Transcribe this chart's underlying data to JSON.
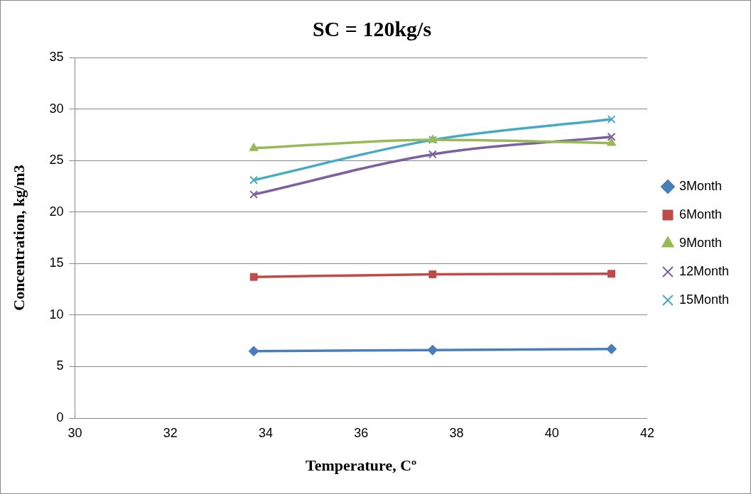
{
  "chart_data": {
    "type": "line",
    "title": "SC = 120kg/s",
    "xlabel": "Temperature, Cº",
    "ylabel": "Concentration, kg/m3",
    "x": [
      33.75,
      37.5,
      41.25
    ],
    "series": [
      {
        "name": "3Month",
        "color": "#4a7ebb",
        "marker": "diamond",
        "values": [
          6.5,
          6.6,
          6.7
        ]
      },
      {
        "name": "6Month",
        "color": "#be4b48",
        "marker": "square",
        "values": [
          13.7,
          13.95,
          14.0
        ]
      },
      {
        "name": "9Month",
        "color": "#98b954",
        "marker": "triangle",
        "values": [
          26.2,
          27.0,
          26.7
        ]
      },
      {
        "name": "12Month",
        "color": "#7d60a0",
        "marker": "cross",
        "values": [
          21.7,
          25.6,
          27.3
        ]
      },
      {
        "name": "15Month",
        "color": "#46aac5",
        "marker": "cross",
        "values": [
          23.1,
          27.0,
          29.0
        ]
      }
    ],
    "xlim": [
      30,
      42
    ],
    "xticks": [
      30,
      32,
      34,
      36,
      38,
      40,
      42
    ],
    "ylim": [
      0,
      35
    ],
    "yticks": [
      0,
      5,
      10,
      15,
      20,
      25,
      30,
      35
    ],
    "grid": "y",
    "legend": "right",
    "line_style": "solid"
  }
}
